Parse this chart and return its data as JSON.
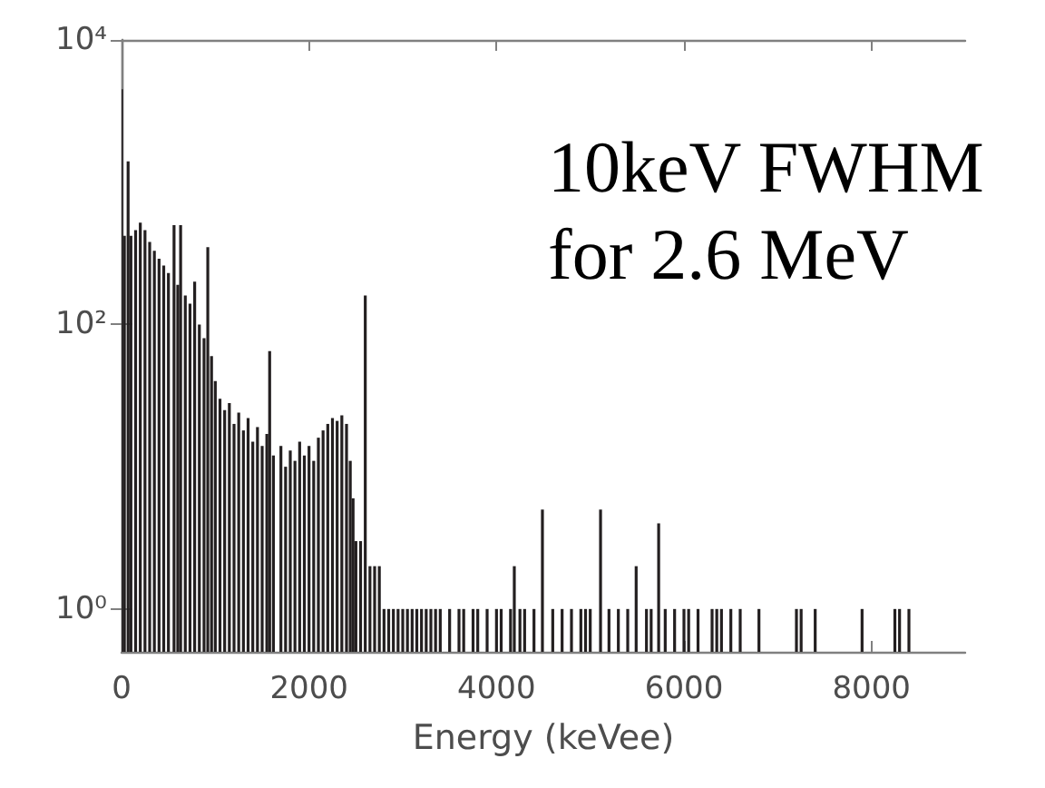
{
  "chart_data": {
    "type": "bar",
    "xlabel": "Energy (keVee)",
    "annotations": [
      "10keV FWHM for 2.6 MeV"
    ],
    "log": true,
    "color": "#231f20",
    "x": [
      0,
      30,
      70,
      100,
      150,
      200,
      250,
      300,
      350,
      400,
      450,
      500,
      560,
      600,
      630,
      680,
      730,
      780,
      830,
      880,
      920,
      960,
      1000,
      1050,
      1100,
      1150,
      1200,
      1250,
      1300,
      1350,
      1400,
      1450,
      1500,
      1550,
      1580,
      1620,
      1700,
      1750,
      1800,
      1850,
      1900,
      1950,
      2000,
      2050,
      2100,
      2150,
      2200,
      2250,
      2300,
      2350,
      2400,
      2440,
      2470,
      2500,
      2550,
      2600,
      2650,
      2700,
      2750,
      2800,
      2850,
      2900,
      2950,
      3000,
      3050,
      3100,
      3150,
      3200,
      3250,
      3300,
      3350,
      3400,
      3500,
      3600,
      3650,
      3750,
      3800,
      3900,
      4000,
      4050,
      4150,
      4190,
      4250,
      4300,
      4400,
      4490,
      4600,
      4700,
      4800,
      4900,
      4950,
      5000,
      5110,
      5200,
      5300,
      5400,
      5490,
      5600,
      5650,
      5730,
      5800,
      5900,
      6000,
      6050,
      6150,
      6300,
      6350,
      6400,
      6500,
      6600,
      6800,
      7200,
      7250,
      7400,
      7900,
      8250,
      8300,
      8400
    ],
    "values": [
      4500,
      420,
      1400,
      420,
      460,
      520,
      460,
      380,
      330,
      290,
      260,
      230,
      500,
      190,
      500,
      160,
      140,
      200,
      100,
      80,
      350,
      60,
      40,
      30,
      25,
      28,
      20,
      24,
      18,
      22,
      15,
      19,
      14,
      17,
      65,
      12,
      14,
      10,
      13,
      11,
      15,
      12,
      14,
      11,
      16,
      18,
      20,
      22,
      21,
      23,
      20,
      11,
      6,
      3,
      3,
      160,
      2,
      2,
      2,
      1,
      1,
      1,
      1,
      1,
      1,
      1,
      1,
      1,
      1,
      1,
      1,
      1,
      1,
      1,
      1,
      1,
      1,
      1,
      1,
      1,
      1,
      2,
      1,
      1,
      1,
      5,
      1,
      1,
      1,
      1,
      1,
      1,
      5,
      1,
      1,
      1,
      2,
      1,
      1,
      4,
      1,
      1,
      1,
      1,
      1,
      1,
      1,
      1,
      1,
      1,
      1,
      1,
      1,
      1,
      1,
      1,
      1,
      1
    ],
    "xlim": [
      0,
      9000
    ],
    "xticks": [
      0,
      2000,
      4000,
      6000,
      8000
    ],
    "ylim": [
      0.5,
      10000
    ],
    "yticks": [
      {
        "value": 1,
        "label": "10⁰"
      },
      {
        "value": 100,
        "label": "10²"
      },
      {
        "value": 10000,
        "label": "10⁴"
      }
    ]
  }
}
